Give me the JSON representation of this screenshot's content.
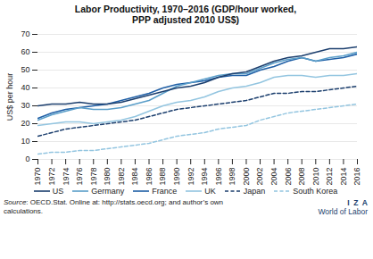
{
  "chart_data": {
    "type": "line",
    "title": "Labor Productivity, 1970–2016 (GDP/hour worked,\nPPP adjusted 2010 US$)",
    "ylabel": "US$ per hour",
    "x": [
      1970,
      1972,
      1974,
      1976,
      1978,
      1980,
      1982,
      1984,
      1986,
      1988,
      1990,
      1992,
      1994,
      1996,
      1998,
      2000,
      2002,
      2004,
      2006,
      2008,
      2010,
      2012,
      2014,
      2016
    ],
    "xlim": [
      1970,
      2016
    ],
    "xticks": [
      1970,
      1972,
      1974,
      1976,
      1978,
      1980,
      1982,
      1984,
      1986,
      1988,
      1990,
      1992,
      1994,
      1996,
      1998,
      2000,
      2002,
      2004,
      2006,
      2008,
      2010,
      2012,
      2014,
      2016
    ],
    "ylim": [
      0,
      70
    ],
    "yticks": [
      0,
      10,
      20,
      30,
      40,
      50,
      60,
      70
    ],
    "grid": true,
    "legend": "bottom",
    "series": [
      {
        "name": "US",
        "color": "#1c3f6e",
        "line_style": "solid",
        "values": [
          30,
          31,
          31,
          32,
          31,
          31,
          32,
          34,
          36,
          38,
          40,
          41,
          43,
          46,
          48,
          49,
          52,
          55,
          57,
          58,
          60,
          62,
          62,
          63
        ]
      },
      {
        "name": "Germany",
        "color": "#5a9ec9",
        "line_style": "solid",
        "values": [
          22,
          25,
          27,
          29,
          28,
          28,
          29,
          31,
          33,
          37,
          41,
          43,
          45,
          47,
          48,
          48,
          51,
          54,
          56,
          57,
          55,
          57,
          58,
          60
        ]
      },
      {
        "name": "France",
        "color": "#1f5fa6",
        "line_style": "solid",
        "values": [
          23,
          26,
          28,
          29,
          30,
          31,
          33,
          35,
          37,
          40,
          42,
          43,
          44,
          46,
          47,
          47,
          50,
          52,
          55,
          57,
          55,
          56,
          57,
          59
        ]
      },
      {
        "name": "UK",
        "color": "#93c5e0",
        "line_style": "solid",
        "values": [
          19,
          20,
          21,
          21,
          20,
          21,
          22,
          24,
          27,
          30,
          32,
          33,
          35,
          38,
          40,
          41,
          43,
          46,
          47,
          47,
          46,
          47,
          47,
          48
        ]
      },
      {
        "name": "Japan",
        "color": "#1c3f6e",
        "line_style": "dashed",
        "values": [
          13,
          15,
          17,
          18,
          19,
          20,
          21,
          22,
          24,
          26,
          28,
          29,
          30,
          31,
          32,
          33,
          35,
          37,
          37,
          38,
          38,
          39,
          40,
          41
        ]
      },
      {
        "name": "South Korea",
        "color": "#93c5e0",
        "line_style": "dashed",
        "values": [
          3,
          4,
          4,
          5,
          5,
          6,
          7,
          8,
          9,
          11,
          13,
          14,
          15,
          17,
          18,
          19,
          22,
          24,
          26,
          27,
          28,
          29,
          30,
          31
        ]
      }
    ],
    "annotations": [
      "Source: OECD.Stat. Online at: http://stats.oecd.org; and author’s own\ncalculations.",
      "I  Z  A",
      "World of Labor"
    ]
  }
}
